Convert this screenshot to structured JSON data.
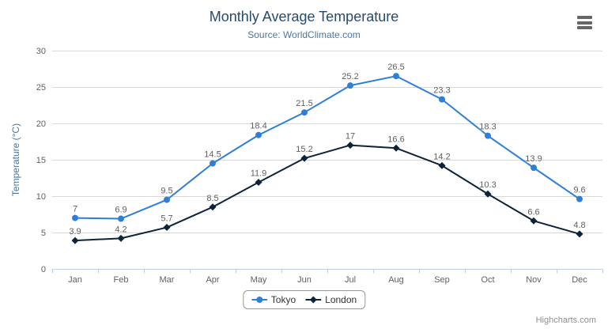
{
  "chart": {
    "title": "Monthly Average Temperature",
    "subtitle": "Source: WorldClimate.com",
    "credits": "Highcharts.com"
  },
  "chart_data": {
    "type": "line",
    "title": "Monthly Average Temperature",
    "subtitle": "Source: WorldClimate.com",
    "categories": [
      "Jan",
      "Feb",
      "Mar",
      "Apr",
      "May",
      "Jun",
      "Jul",
      "Aug",
      "Sep",
      "Oct",
      "Nov",
      "Dec"
    ],
    "series": [
      {
        "name": "Tokyo",
        "color": "#2f7ed8",
        "marker": "circle",
        "values": [
          7,
          6.9,
          9.5,
          14.5,
          18.4,
          21.5,
          25.2,
          26.5,
          23.3,
          18.3,
          13.9,
          9.6
        ]
      },
      {
        "name": "London",
        "color": "#0d233a",
        "marker": "diamond",
        "values": [
          3.9,
          4.2,
          5.7,
          8.5,
          11.9,
          15.2,
          17,
          16.6,
          14.2,
          10.3,
          6.6,
          4.8
        ]
      }
    ],
    "xlabel": "",
    "ylabel": "Temperature (°C)",
    "ylim": [
      0,
      30
    ],
    "yticks": [
      0,
      5,
      10,
      15,
      20,
      25,
      30
    ],
    "grid": true,
    "data_labels": true,
    "legend_position": "bottom"
  },
  "colors": {
    "title": "#274b6d",
    "subtitle": "#4d759e",
    "axis_label": "#606060",
    "axis_title": "#4d759e",
    "grid": "#d8d8d8",
    "axis_line": "#c0d0e0",
    "data_label": "#606060",
    "legend_text": "#333333",
    "legend_border": "#999999",
    "credits": "#909090",
    "menu_icon": "#666666"
  }
}
